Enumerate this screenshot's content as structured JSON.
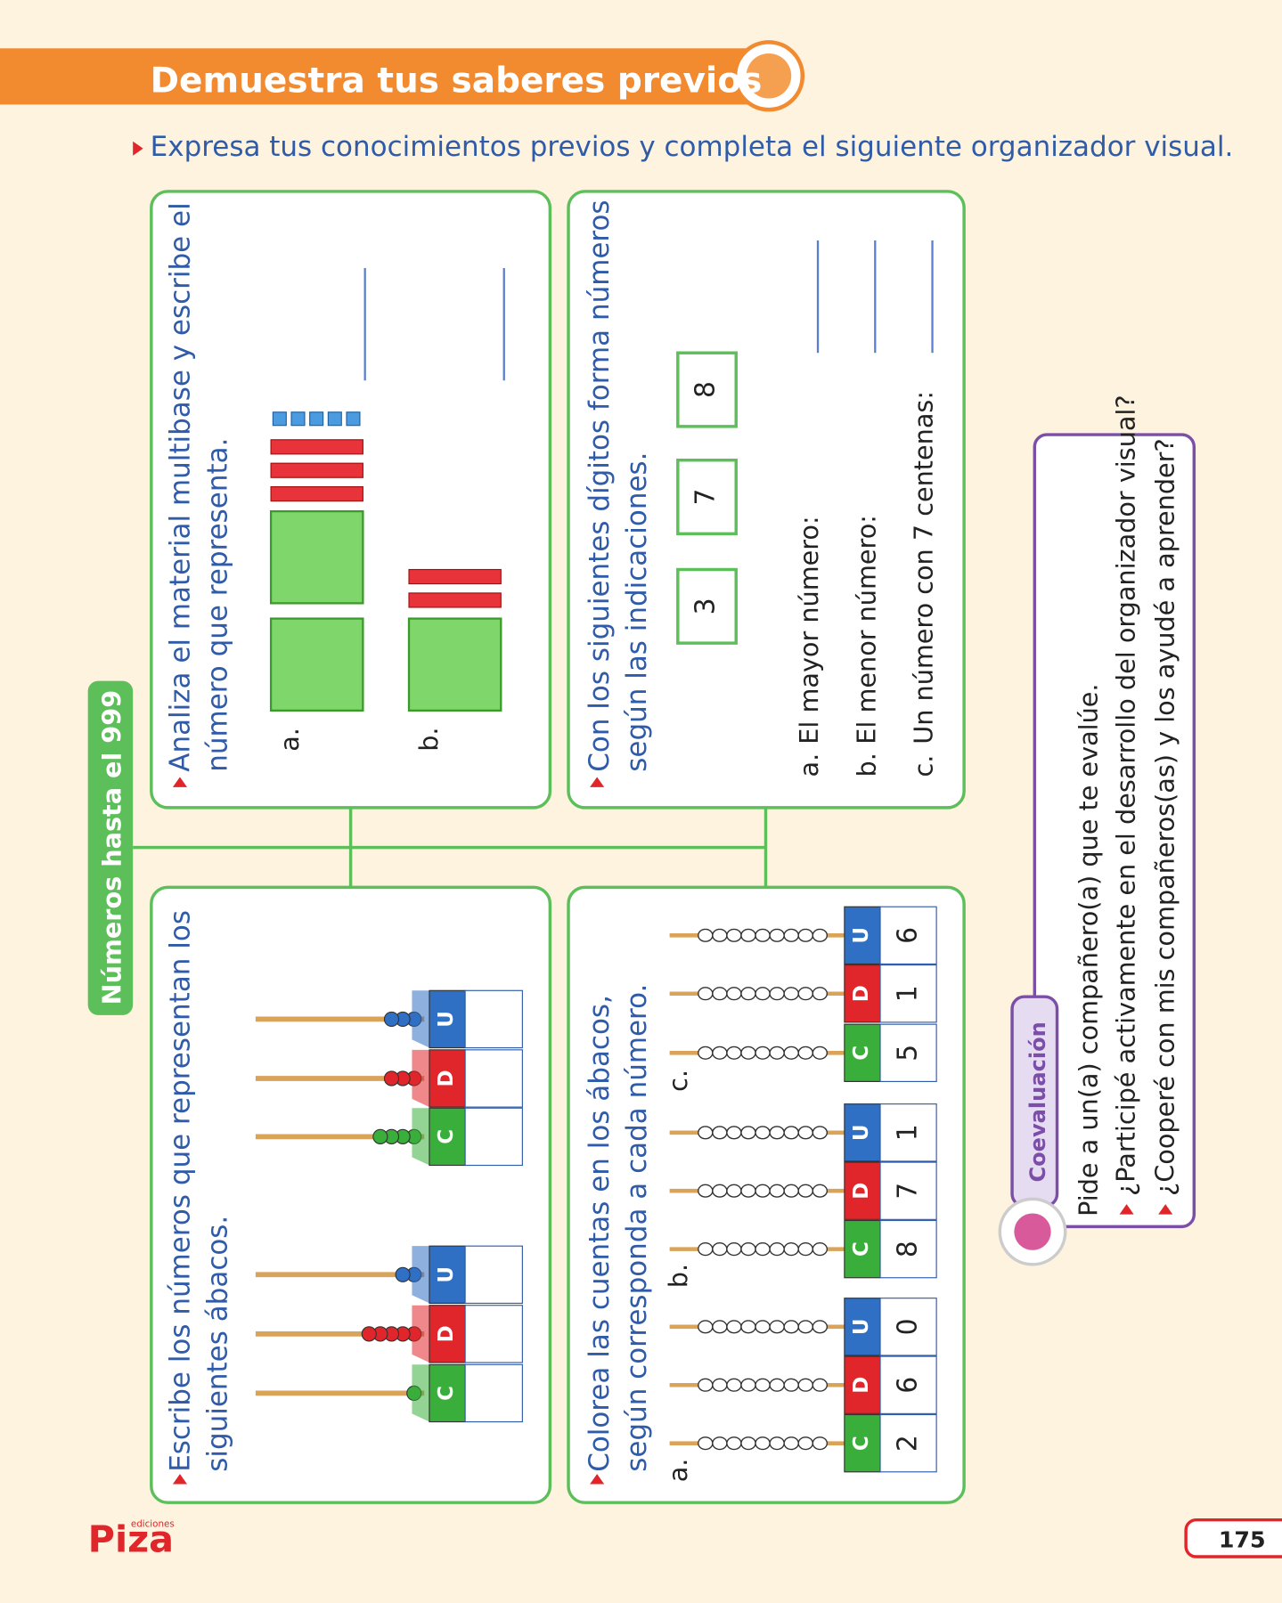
{
  "header": {
    "title": "Demuestra tus saberes previos"
  },
  "instruction": "Expresa tus conocimientos previos y completa el siguiente organizador visual.",
  "organizer": {
    "center": "Números hasta el 999",
    "abacus_labels": [
      "C",
      "D",
      "U"
    ],
    "box_abacus_write": {
      "lines": [
        "Escribe los números que representan los",
        "siguientes ábacos."
      ]
    },
    "box_abacus_color": {
      "lines": [
        "Colorea las cuentas en los ábacos,",
        "según corresponda a cada número."
      ],
      "items": [
        {
          "label": "a.",
          "digits": [
            "2",
            "6",
            "0"
          ]
        },
        {
          "label": "b.",
          "digits": [
            "8",
            "7",
            "1"
          ]
        },
        {
          "label": "c.",
          "digits": [
            "5",
            "1",
            "6"
          ]
        }
      ]
    },
    "box_multibase": {
      "lines": [
        "Analiza el material multibase y escribe el",
        "número que representa."
      ],
      "items": [
        "a.",
        "b."
      ]
    },
    "box_digits": {
      "lines": [
        "Con los siguientes dígitos forma números",
        "según las indicaciones."
      ],
      "digits": [
        "3",
        "7",
        "8"
      ],
      "items": [
        {
          "label": "a.",
          "text": "El mayor número:"
        },
        {
          "label": "b.",
          "text": "El menor número:"
        },
        {
          "label": "c.",
          "text": "Un número con 7 centenas:"
        }
      ]
    }
  },
  "coevaluation": {
    "title": "Coevaluación",
    "intro": "Pide a un(a) compañero(a) que te evalúe.",
    "items": [
      "¿Participé activamente en el desarrollo del organizador visual?",
      "¿Cooperé con mis compañeros(as) y los ayudé a aprender?"
    ]
  },
  "footer": {
    "brand": "Piza",
    "brand_sub": "ediciones",
    "page": "175"
  }
}
